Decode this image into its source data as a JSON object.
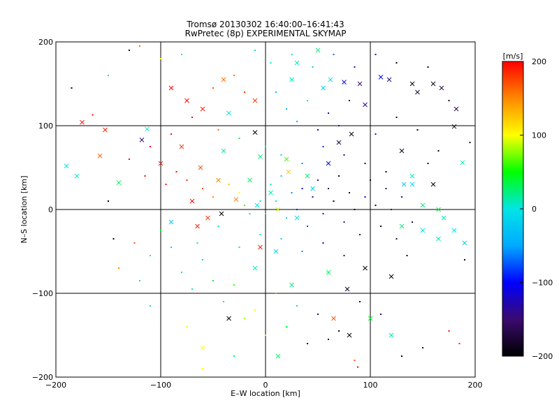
{
  "chart_data": {
    "type": "scatter",
    "title": "Tromsø 20130302 16:40:00–16:41:43",
    "subtitle": "RwPretec (8p) EXPERIMENTAL SKYMAP",
    "xlabel": "E–W location [km]",
    "ylabel": "N–S location [km]",
    "xlim": [
      -200,
      200
    ],
    "ylim": [
      -200,
      200
    ],
    "xticks": [
      -200,
      -100,
      0,
      100,
      200
    ],
    "yticks": [
      -200,
      -100,
      0,
      100,
      200
    ],
    "grid": true,
    "colorbar": {
      "label": "[m/s]",
      "range": [
        -200,
        200
      ],
      "ticks": [
        200,
        100,
        0,
        -100,
        -200
      ],
      "colors": [
        "#000000",
        "#3a0a6e",
        "#0000ff",
        "#00aaff",
        "#00e5e5",
        "#00ff00",
        "#ffff00",
        "#ff8800",
        "#ff0000"
      ]
    },
    "series": [
      {
        "marker": "x",
        "points": [
          [
            -175,
            104,
            200
          ],
          [
            -153,
            95,
            190
          ],
          [
            -118,
            83,
            -150
          ],
          [
            -113,
            96,
            10
          ],
          [
            -190,
            52,
            0
          ],
          [
            -180,
            40,
            10
          ],
          [
            -158,
            64,
            170
          ],
          [
            -140,
            32,
            30
          ],
          [
            -100,
            55,
            190
          ],
          [
            -80,
            75,
            180
          ],
          [
            -62,
            50,
            170
          ],
          [
            -45,
            35,
            150
          ],
          [
            -70,
            10,
            200
          ],
          [
            -55,
            -10,
            180
          ],
          [
            -28,
            12,
            150
          ],
          [
            -42,
            -5,
            -200
          ],
          [
            -10,
            92,
            -200
          ],
          [
            -5,
            63,
            20
          ],
          [
            -15,
            35,
            30
          ],
          [
            -8,
            5,
            0
          ],
          [
            5,
            20,
            10
          ],
          [
            12,
            0,
            90
          ],
          [
            20,
            60,
            60
          ],
          [
            22,
            45,
            120
          ],
          [
            30,
            -10,
            0
          ],
          [
            40,
            40,
            30
          ],
          [
            45,
            25,
            -20
          ],
          [
            60,
            55,
            -110
          ],
          [
            70,
            80,
            -180
          ],
          [
            82,
            90,
            -200
          ],
          [
            90,
            150,
            -150
          ],
          [
            95,
            125,
            -140
          ],
          [
            110,
            158,
            -100
          ],
          [
            118,
            155,
            -140
          ],
          [
            140,
            150,
            -200
          ],
          [
            145,
            140,
            -180
          ],
          [
            160,
            150,
            -190
          ],
          [
            168,
            145,
            -170
          ],
          [
            182,
            120,
            -170
          ],
          [
            180,
            99,
            -200
          ],
          [
            140,
            30,
            0
          ],
          [
            160,
            30,
            -200
          ],
          [
            150,
            5,
            20
          ],
          [
            165,
            0,
            40
          ],
          [
            170,
            -10,
            10
          ],
          [
            130,
            -20,
            20
          ],
          [
            150,
            -25,
            0
          ],
          [
            165,
            -35,
            10
          ],
          [
            180,
            -25,
            0
          ],
          [
            190,
            -40,
            -20
          ],
          [
            132,
            30,
            -20
          ],
          [
            140,
            40,
            10
          ],
          [
            -90,
            145,
            200
          ],
          [
            -40,
            155,
            160
          ],
          [
            -10,
            130,
            180
          ],
          [
            25,
            155,
            10
          ],
          [
            55,
            145,
            -20
          ],
          [
            62,
            155,
            0
          ],
          [
            75,
            152,
            -110
          ],
          [
            30,
            175,
            10
          ],
          [
            50,
            190,
            20
          ],
          [
            -35,
            115,
            0
          ],
          [
            -60,
            120,
            190
          ],
          [
            -75,
            130,
            200
          ],
          [
            -40,
            70,
            10
          ],
          [
            -90,
            -15,
            -30
          ],
          [
            -65,
            -20,
            190
          ],
          [
            10,
            -50,
            -10
          ],
          [
            25,
            -90,
            20
          ],
          [
            60,
            -75,
            30
          ],
          [
            78,
            -95,
            -190
          ],
          [
            95,
            -70,
            -200
          ],
          [
            -10,
            -70,
            10
          ],
          [
            -35,
            -130,
            -200
          ],
          [
            12,
            -175,
            30
          ],
          [
            -60,
            -165,
            100
          ],
          [
            65,
            -130,
            170
          ],
          [
            80,
            -150,
            -200
          ],
          [
            100,
            -130,
            40
          ],
          [
            120,
            -150,
            20
          ],
          [
            188,
            56,
            10
          ],
          [
            130,
            70,
            -190
          ],
          [
            120,
            -80,
            -200
          ],
          [
            -5,
            -45,
            190
          ]
        ]
      },
      {
        "marker": "dot",
        "points": [
          [
            -185,
            145,
            -200
          ],
          [
            -165,
            113,
            200
          ],
          [
            -150,
            160,
            30
          ],
          [
            -130,
            190,
            -200
          ],
          [
            -120,
            195,
            160
          ],
          [
            -100,
            180,
            100
          ],
          [
            -80,
            185,
            30
          ],
          [
            -130,
            60,
            200
          ],
          [
            -115,
            40,
            200
          ],
          [
            -95,
            30,
            200
          ],
          [
            -85,
            45,
            200
          ],
          [
            -75,
            35,
            180
          ],
          [
            -60,
            25,
            170
          ],
          [
            -50,
            15,
            150
          ],
          [
            -35,
            30,
            130
          ],
          [
            -25,
            20,
            100
          ],
          [
            -20,
            5,
            60
          ],
          [
            -15,
            -5,
            40
          ],
          [
            -5,
            10,
            20
          ],
          [
            0,
            -5,
            0
          ],
          [
            5,
            30,
            10
          ],
          [
            10,
            10,
            0
          ],
          [
            15,
            40,
            -20
          ],
          [
            20,
            -10,
            -10
          ],
          [
            25,
            20,
            -60
          ],
          [
            30,
            0,
            -90
          ],
          [
            35,
            25,
            -110
          ],
          [
            40,
            -20,
            -80
          ],
          [
            45,
            15,
            -130
          ],
          [
            50,
            35,
            -150
          ],
          [
            55,
            -5,
            -120
          ],
          [
            60,
            25,
            -170
          ],
          [
            65,
            10,
            -200
          ],
          [
            70,
            40,
            -190
          ],
          [
            75,
            -15,
            -150
          ],
          [
            80,
            20,
            -180
          ],
          [
            85,
            0,
            -200
          ],
          [
            90,
            -30,
            -160
          ],
          [
            95,
            15,
            -100
          ],
          [
            100,
            35,
            -180
          ],
          [
            105,
            5,
            -190
          ],
          [
            110,
            -20,
            -200
          ],
          [
            115,
            25,
            -160
          ],
          [
            120,
            0,
            -140
          ],
          [
            125,
            -35,
            -180
          ],
          [
            130,
            15,
            -120
          ],
          [
            135,
            -55,
            -200
          ],
          [
            140,
            -15,
            -170
          ],
          [
            -150,
            10,
            -200
          ],
          [
            -140,
            -70,
            150
          ],
          [
            -125,
            -40,
            170
          ],
          [
            -110,
            -55,
            20
          ],
          [
            -100,
            -25,
            40
          ],
          [
            -90,
            -45,
            30
          ],
          [
            -80,
            -75,
            10
          ],
          [
            -70,
            -95,
            20
          ],
          [
            -60,
            -60,
            30
          ],
          [
            -50,
            -85,
            40
          ],
          [
            -40,
            -110,
            20
          ],
          [
            -30,
            -90,
            60
          ],
          [
            -20,
            -130,
            80
          ],
          [
            -10,
            -120,
            100
          ],
          [
            0,
            -150,
            90
          ],
          [
            10,
            -100,
            60
          ],
          [
            20,
            -140,
            40
          ],
          [
            30,
            -115,
            30
          ],
          [
            40,
            -160,
            -190
          ],
          [
            50,
            -125,
            -160
          ],
          [
            60,
            -155,
            -180
          ],
          [
            70,
            -145,
            -200
          ],
          [
            90,
            -110,
            -190
          ],
          [
            110,
            -125,
            -170
          ],
          [
            130,
            -175,
            -200
          ],
          [
            150,
            -165,
            -190
          ],
          [
            175,
            -145,
            200
          ],
          [
            185,
            -160,
            190
          ],
          [
            85,
            -180,
            170
          ],
          [
            88,
            -188,
            200
          ],
          [
            -60,
            -190,
            100
          ],
          [
            -30,
            -175,
            30
          ],
          [
            -75,
            -140,
            90
          ],
          [
            -110,
            -115,
            20
          ],
          [
            -120,
            -85,
            10
          ],
          [
            -145,
            -35,
            -200
          ],
          [
            10,
            140,
            -20
          ],
          [
            20,
            120,
            -50
          ],
          [
            30,
            105,
            -40
          ],
          [
            40,
            130,
            10
          ],
          [
            50,
            95,
            -100
          ],
          [
            60,
            115,
            -130
          ],
          [
            70,
            100,
            -150
          ],
          [
            80,
            130,
            -170
          ],
          [
            -30,
            160,
            160
          ],
          [
            -20,
            140,
            180
          ],
          [
            -50,
            145,
            170
          ],
          [
            -70,
            110,
            200
          ],
          [
            -90,
            90,
            200
          ],
          [
            -110,
            75,
            200
          ],
          [
            -45,
            95,
            160
          ],
          [
            -25,
            85,
            40
          ],
          [
            0,
            75,
            10
          ],
          [
            15,
            65,
            -20
          ],
          [
            35,
            55,
            -60
          ],
          [
            55,
            75,
            -90
          ],
          [
            75,
            65,
            -140
          ],
          [
            95,
            55,
            -180
          ],
          [
            115,
            45,
            -200
          ],
          [
            105,
            90,
            -140
          ],
          [
            125,
            110,
            -190
          ],
          [
            145,
            95,
            -200
          ],
          [
            165,
            70,
            -200
          ],
          [
            155,
            55,
            -190
          ],
          [
            -10,
            190,
            20
          ],
          [
            5,
            175,
            0
          ],
          [
            25,
            185,
            -10
          ],
          [
            45,
            170,
            -30
          ],
          [
            65,
            185,
            -70
          ],
          [
            85,
            170,
            -120
          ],
          [
            105,
            185,
            -150
          ],
          [
            125,
            175,
            -200
          ],
          [
            155,
            170,
            -200
          ],
          [
            175,
            130,
            -200
          ],
          [
            195,
            80,
            -200
          ],
          [
            190,
            -60,
            -190
          ],
          [
            -5,
            -30,
            10
          ],
          [
            -25,
            -45,
            20
          ],
          [
            15,
            -35,
            -20
          ],
          [
            35,
            -50,
            -60
          ],
          [
            55,
            -40,
            -100
          ],
          [
            75,
            -55,
            -160
          ],
          [
            -45,
            -20,
            10
          ],
          [
            -65,
            -40,
            20
          ]
        ]
      }
    ]
  }
}
